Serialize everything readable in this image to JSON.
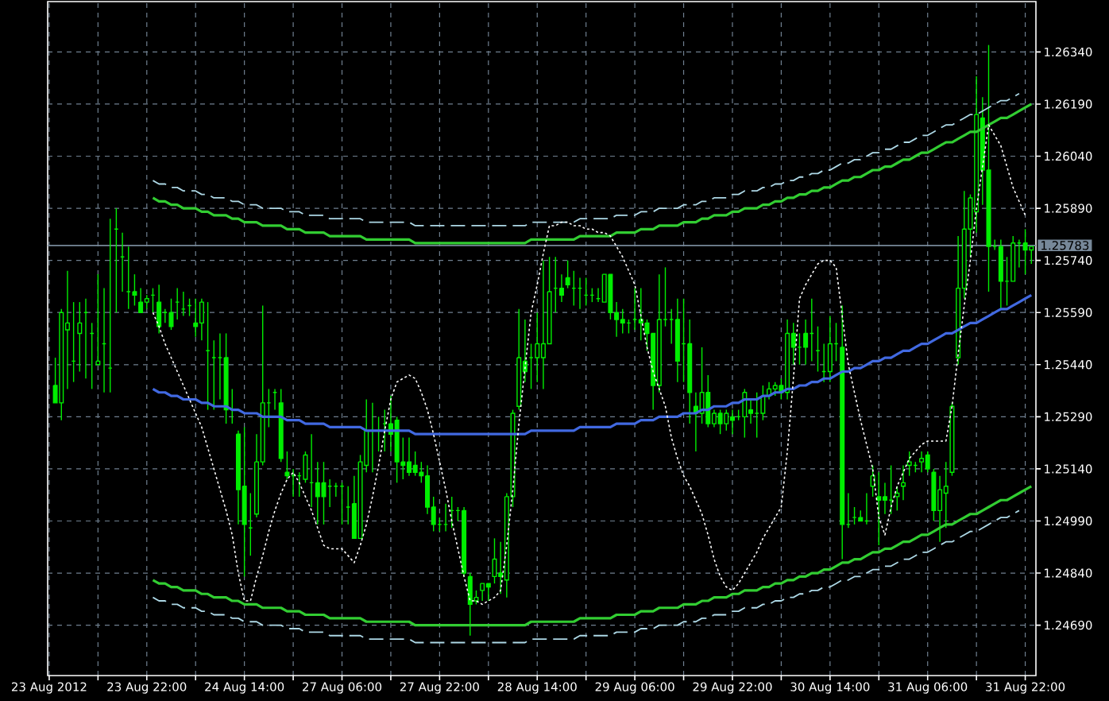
{
  "chart_data": {
    "type": "candlestick",
    "color": "#00ee00",
    "grid": true,
    "ylim": [
      1.24545,
      1.26485
    ],
    "categories": [
      "23 Aug 2012",
      null,
      null,
      null,
      null,
      null,
      null,
      null,
      null,
      null,
      null,
      null,
      null,
      null,
      null,
      null,
      "23 Aug 22:00",
      null,
      null,
      null,
      null,
      null,
      null,
      null,
      null,
      null,
      null,
      null,
      null,
      null,
      null,
      null,
      "24 Aug 14:00",
      null,
      null,
      null,
      null,
      null,
      null,
      null,
      null,
      null,
      null,
      null,
      null,
      null,
      null,
      null,
      "27 Aug 06:00",
      null,
      null,
      null,
      null,
      null,
      null,
      null,
      null,
      null,
      null,
      null,
      null,
      null,
      null,
      null,
      "27 Aug 22:00",
      null,
      null,
      null,
      null,
      null,
      null,
      null,
      null,
      null,
      null,
      null,
      null,
      null,
      null,
      null,
      "28 Aug 14:00",
      null,
      null,
      null,
      null,
      null,
      null,
      null,
      null,
      null,
      null,
      null,
      null,
      null,
      null,
      null,
      "29 Aug 06:00",
      null,
      null,
      null,
      null,
      null,
      null,
      null,
      null,
      null,
      null,
      null,
      null,
      null,
      null,
      null,
      "29 Aug 22:00",
      null,
      null,
      null,
      null,
      null,
      null,
      null,
      null,
      null,
      null,
      null,
      null,
      null,
      null,
      null,
      "30 Aug 14:00",
      null,
      null,
      null,
      null,
      null,
      null,
      null,
      null,
      null,
      null,
      null,
      null,
      null,
      null,
      null,
      "31 Aug 06:00",
      null,
      null,
      null,
      null,
      null,
      null,
      null,
      null,
      null,
      null,
      null,
      null,
      null,
      null,
      null,
      "31 Aug 22:00",
      null
    ],
    "yticks": [
      {
        "value": 1.2469,
        "label": "1.24690"
      },
      {
        "value": 1.2484,
        "label": "1.24840"
      },
      {
        "value": 1.2499,
        "label": "1.24990"
      },
      {
        "value": 1.2514,
        "label": "1.25140"
      },
      {
        "value": 1.2529,
        "label": "1.25290"
      },
      {
        "value": 1.2544,
        "label": "1.25440"
      },
      {
        "value": 1.2559,
        "label": "1.25590"
      },
      {
        "value": 1.2574,
        "label": "1.25740"
      },
      {
        "value": 1.2589,
        "label": "1.25890"
      },
      {
        "value": 1.2604,
        "label": "1.26040"
      },
      {
        "value": 1.2619,
        "label": "1.26190"
      },
      {
        "value": 1.2634,
        "label": "1.26340"
      }
    ],
    "ref_lines": [
      {
        "axis": "y",
        "value": 1.25783,
        "label": "1.25783",
        "color": "#778899"
      }
    ],
    "ohlc": [
      null,
      [
        1.2538,
        1.2546,
        1.2533,
        1.2533
      ],
      [
        1.2533,
        1.256,
        1.2528,
        1.2559
      ],
      [
        1.2554,
        1.2571,
        1.2537,
        1.2556
      ],
      [
        1.2545,
        1.2562,
        1.2539,
        1.2545
      ],
      [
        1.2553,
        1.2562,
        1.2542,
        1.2556
      ],
      [
        1.2559,
        1.2563,
        1.254,
        1.2559
      ],
      [
        1.2553,
        1.2556,
        1.2537,
        1.2553
      ],
      [
        1.2544,
        1.257,
        1.2544,
        1.2545
      ],
      [
        1.255,
        1.2566,
        1.2536,
        1.255
      ],
      [
        1.2543,
        1.2586,
        1.2536,
        1.2543
      ],
      [
        1.2583,
        1.2589,
        1.2559,
        1.2583
      ],
      [
        1.2575,
        1.2582,
        1.2565,
        1.2575
      ],
      [
        1.2565,
        1.2578,
        1.256,
        1.2565
      ],
      [
        1.2565,
        1.257,
        1.2561,
        1.2564
      ],
      [
        1.2562,
        1.2566,
        1.2559,
        1.2559
      ],
      [
        1.2562,
        1.2564,
        1.256,
        1.2563
      ],
      [
        1.2564,
        1.2566,
        1.2559,
        1.2564
      ],
      [
        1.2562,
        1.2567,
        1.2553,
        1.2555
      ],
      [
        1.2559,
        1.256,
        1.2556,
        1.2559
      ],
      [
        1.2559,
        1.2563,
        1.2554,
        1.2555
      ],
      [
        1.2562,
        1.2566,
        1.2557,
        1.2562
      ],
      [
        1.256,
        1.2565,
        1.2558,
        1.256
      ],
      [
        1.2561,
        1.2563,
        1.2558,
        1.2561
      ],
      [
        1.2556,
        1.2563,
        1.2552,
        1.2555
      ],
      [
        1.2556,
        1.2563,
        1.2551,
        1.2562
      ],
      [
        1.2548,
        1.2562,
        1.2531,
        1.2548
      ],
      [
        1.2546,
        1.2551,
        1.2531,
        1.2546
      ],
      [
        1.2546,
        1.2553,
        1.2534,
        1.2546
      ],
      [
        1.2546,
        1.2553,
        1.2527,
        1.2531
      ],
      [
        1.2531,
        1.2537,
        1.2527,
        1.2531
      ],
      [
        1.2524,
        1.2525,
        1.2498,
        1.2508
      ],
      [
        1.2509,
        1.2526,
        1.2483,
        1.2498
      ],
      [
        1.2497,
        1.2507,
        1.2489,
        1.2497
      ],
      [
        1.2501,
        1.2524,
        1.25,
        1.2516
      ],
      [
        1.2516,
        1.2561,
        1.2515,
        1.2533
      ],
      [
        1.2533,
        1.2537,
        1.2526,
        1.2533
      ],
      [
        1.2536,
        1.2537,
        1.2531,
        1.2536
      ],
      [
        1.2533,
        1.2537,
        1.2516,
        1.2517
      ],
      [
        1.2513,
        1.2519,
        1.2511,
        1.2512
      ],
      [
        1.2512,
        1.2514,
        1.2506,
        1.2512
      ],
      [
        1.2512,
        1.2513,
        1.2506,
        1.2512
      ],
      [
        1.2511,
        1.2519,
        1.251,
        1.2518
      ],
      [
        1.251,
        1.2524,
        1.2503,
        1.251
      ],
      [
        1.251,
        1.2516,
        1.2498,
        1.2506
      ],
      [
        1.251,
        1.2516,
        1.2498,
        1.2506
      ],
      [
        1.2509,
        1.2511,
        1.2503,
        1.2509
      ],
      [
        1.2509,
        1.251,
        1.2506,
        1.2509
      ],
      [
        1.2509,
        1.251,
        1.2498,
        1.2509
      ],
      [
        1.2503,
        1.2509,
        1.2498,
        1.2503
      ],
      [
        1.2504,
        1.2512,
        1.2494,
        1.2494
      ],
      [
        1.2494,
        1.2518,
        1.2494,
        1.2516
      ],
      [
        1.2515,
        1.2534,
        1.2513,
        1.2525
      ],
      [
        1.2525,
        1.2533,
        1.2513,
        1.2525
      ],
      [
        1.2525,
        1.2529,
        1.2519,
        1.2525
      ],
      [
        1.2527,
        1.2531,
        1.2519,
        1.2527
      ],
      [
        1.2527,
        1.2535,
        1.2519,
        1.2524
      ],
      [
        1.2528,
        1.2529,
        1.251,
        1.2516
      ],
      [
        1.2516,
        1.2523,
        1.2511,
        1.2515
      ],
      [
        1.2516,
        1.2523,
        1.2512,
        1.2513
      ],
      [
        1.2515,
        1.2519,
        1.2512,
        1.2513
      ],
      [
        1.2513,
        1.2516,
        1.251,
        1.2512
      ],
      [
        1.2512,
        1.2515,
        1.2501,
        1.2503
      ],
      [
        1.2503,
        1.2506,
        1.2496,
        1.2498
      ],
      [
        1.2498,
        1.25,
        1.2496,
        1.2498
      ],
      [
        1.2498,
        1.2504,
        1.2496,
        1.2498
      ],
      [
        1.2502,
        1.2506,
        1.2497,
        1.2502
      ],
      [
        1.2502,
        1.2503,
        1.2499,
        1.2502
      ],
      [
        1.2502,
        1.2503,
        1.2483,
        1.2484
      ],
      [
        1.2483,
        1.2484,
        1.2466,
        1.2475
      ],
      [
        1.2476,
        1.2479,
        1.2475,
        1.2477
      ],
      [
        1.2479,
        1.2481,
        1.2476,
        1.2481
      ],
      [
        1.2481,
        1.2481,
        1.2476,
        1.248
      ],
      [
        1.2483,
        1.2494,
        1.2481,
        1.2488
      ],
      [
        1.2484,
        1.2493,
        1.2478,
        1.2483
      ],
      [
        1.2482,
        1.2507,
        1.2477,
        1.2506
      ],
      [
        1.2506,
        1.2531,
        1.2503,
        1.253
      ],
      [
        1.2532,
        1.256,
        1.2531,
        1.2546
      ],
      [
        1.2545,
        1.2557,
        1.2539,
        1.2542
      ],
      [
        1.2546,
        1.255,
        1.2537,
        1.2546
      ],
      [
        1.2546,
        1.2559,
        1.2539,
        1.255
      ],
      [
        1.2546,
        1.2574,
        1.2537,
        1.255
      ],
      [
        1.255,
        1.2575,
        1.255,
        1.2565
      ],
      [
        1.2566,
        1.2575,
        1.2559,
        1.2566
      ],
      [
        1.2566,
        1.257,
        1.2562,
        1.2564
      ],
      [
        1.2569,
        1.2574,
        1.2566,
        1.2567
      ],
      [
        1.2566,
        1.2571,
        1.2561,
        1.2566
      ],
      [
        1.2566,
        1.2569,
        1.256,
        1.2566
      ],
      [
        1.2564,
        1.2569,
        1.2561,
        1.2564
      ],
      [
        1.2564,
        1.2566,
        1.2562,
        1.2564
      ],
      [
        1.2563,
        1.2566,
        1.2562,
        1.2563
      ],
      [
        1.2562,
        1.257,
        1.2562,
        1.257
      ],
      [
        1.257,
        1.257,
        1.2557,
        1.2559
      ],
      [
        1.2559,
        1.2562,
        1.2552,
        1.2557
      ],
      [
        1.2557,
        1.256,
        1.2553,
        1.2556
      ],
      [
        1.2556,
        1.2557,
        1.2553,
        1.2556
      ],
      [
        1.2557,
        1.2566,
        1.2554,
        1.2557
      ],
      [
        1.2557,
        1.2566,
        1.2551,
        1.2556
      ],
      [
        1.2556,
        1.2557,
        1.2548,
        1.2553
      ],
      [
        1.2553,
        1.2553,
        1.2531,
        1.2538
      ],
      [
        1.2538,
        1.257,
        1.2536,
        1.2557
      ],
      [
        1.2557,
        1.2572,
        1.2555,
        1.2557
      ],
      [
        1.2557,
        1.256,
        1.255,
        1.2557
      ],
      [
        1.2557,
        1.2563,
        1.2539,
        1.2545
      ],
      [
        1.255,
        1.2563,
        1.2539,
        1.255
      ],
      [
        1.255,
        1.2557,
        1.2527,
        1.2536
      ],
      [
        1.2532,
        1.2536,
        1.2519,
        1.253
      ],
      [
        1.253,
        1.2549,
        1.2527,
        1.2536
      ],
      [
        1.2536,
        1.2541,
        1.2526,
        1.2527
      ],
      [
        1.2527,
        1.2531,
        1.2526,
        1.253
      ],
      [
        1.253,
        1.2531,
        1.2524,
        1.2527
      ],
      [
        1.2527,
        1.2531,
        1.2525,
        1.253
      ],
      [
        1.2529,
        1.2531,
        1.2524,
        1.2528
      ],
      [
        1.2529,
        1.2531,
        1.2528,
        1.2529
      ],
      [
        1.2529,
        1.2537,
        1.2523,
        1.2536
      ],
      [
        1.2531,
        1.2534,
        1.2527,
        1.253
      ],
      [
        1.253,
        1.2536,
        1.2523,
        1.253
      ],
      [
        1.253,
        1.2538,
        1.2528,
        1.2535
      ],
      [
        1.2535,
        1.2539,
        1.2534,
        1.2537
      ],
      [
        1.2537,
        1.2539,
        1.2535,
        1.2538
      ],
      [
        1.2538,
        1.254,
        1.2534,
        1.2536
      ],
      [
        1.2536,
        1.2557,
        1.2534,
        1.2553
      ],
      [
        1.2553,
        1.2556,
        1.2544,
        1.2549
      ],
      [
        1.2549,
        1.2553,
        1.2544,
        1.2549
      ],
      [
        1.2553,
        1.2557,
        1.2544,
        1.2549
      ],
      [
        1.2553,
        1.2563,
        1.2545,
        1.2553
      ],
      [
        1.2548,
        1.2555,
        1.2542,
        1.2548
      ],
      [
        1.2542,
        1.255,
        1.2539,
        1.2542
      ],
      [
        1.2542,
        1.2558,
        1.2539,
        1.255
      ],
      [
        1.255,
        1.2556,
        1.2545,
        1.255
      ],
      [
        1.2549,
        1.2561,
        1.2488,
        1.2498
      ],
      [
        1.2498,
        1.2507,
        1.2497,
        1.2498
      ],
      [
        1.25,
        1.2503,
        1.2498,
        1.25
      ],
      [
        1.25,
        1.2502,
        1.2499,
        1.2499
      ],
      [
        1.2499,
        1.2507,
        1.2498,
        1.2499
      ],
      [
        1.2509,
        1.2515,
        1.2506,
        1.2512
      ],
      [
        1.2506,
        1.2513,
        1.2492,
        1.2505
      ],
      [
        1.2506,
        1.251,
        1.2501,
        1.2505
      ],
      [
        1.2505,
        1.2515,
        1.2501,
        1.2505
      ],
      [
        1.2506,
        1.2509,
        1.2502,
        1.2507
      ],
      [
        1.2509,
        1.2515,
        1.2505,
        1.251
      ],
      [
        1.2515,
        1.2519,
        1.2512,
        1.2516
      ],
      [
        1.2515,
        1.2516,
        1.2513,
        1.2515
      ],
      [
        1.2516,
        1.2519,
        1.2513,
        1.2517
      ],
      [
        1.2518,
        1.2519,
        1.2513,
        1.2514
      ],
      [
        1.2513,
        1.2514,
        1.2499,
        1.2502
      ],
      [
        1.2502,
        1.2512,
        1.2493,
        1.2508
      ],
      [
        1.2507,
        1.2516,
        1.2497,
        1.2509
      ],
      [
        1.2513,
        1.2533,
        1.2512,
        1.2532
      ],
      [
        1.2546,
        1.2581,
        1.2544,
        1.2566
      ],
      [
        1.2566,
        1.2594,
        1.2563,
        1.2583
      ],
      [
        1.2583,
        1.2593,
        1.2575,
        1.2592
      ],
      [
        1.2588,
        1.2627,
        1.2582,
        1.2616
      ],
      [
        1.2615,
        1.2621,
        1.259,
        1.26
      ],
      [
        1.26,
        1.2636,
        1.2565,
        1.2578
      ],
      [
        1.2578,
        1.258,
        1.2577,
        1.2578
      ],
      [
        1.2578,
        1.258,
        1.256,
        1.2568
      ],
      [
        1.2568,
        1.2575,
        1.2561,
        1.2568
      ],
      [
        1.2568,
        1.2581,
        1.2568,
        1.2579
      ],
      [
        1.2579,
        1.258,
        1.2572,
        1.2579
      ],
      [
        1.2579,
        1.2583,
        1.257,
        1.2577
      ],
      [
        1.2577,
        1.2578,
        1.2573,
        1.2578
      ]
    ],
    "series": [
      {
        "type": "line",
        "color": "#add8e6",
        "line_style": "dashed",
        "values": [
          null,
          null,
          null,
          null,
          null,
          null,
          null,
          null,
          null,
          null,
          null,
          null,
          null,
          null,
          null,
          null,
          null,
          1.2597,
          1.2596,
          1.2596,
          1.2595,
          1.2595,
          1.2594,
          1.2594,
          1.2594,
          1.2593,
          1.2593,
          1.2592,
          1.2592,
          1.2592,
          1.2591,
          1.2591,
          1.259,
          1.259,
          1.259,
          1.2589,
          1.2589,
          1.2589,
          1.2589,
          1.2588,
          1.2588,
          1.2588,
          1.2587,
          1.2587,
          1.2587,
          1.2587,
          1.2586,
          1.2586,
          1.2586,
          1.2586,
          1.2586,
          1.2586,
          1.2585,
          1.2585,
          1.2585,
          1.2585,
          1.2585,
          1.2585,
          1.2585,
          1.2585,
          1.2584,
          1.2584,
          1.2584,
          1.2584,
          1.2584,
          1.2584,
          1.2584,
          1.2584,
          1.2584,
          1.2584,
          1.2584,
          1.2584,
          1.2584,
          1.2584,
          1.2584,
          1.2584,
          1.2584,
          1.2584,
          1.2584,
          1.2585,
          1.2585,
          1.2585,
          1.2585,
          1.2585,
          1.2585,
          1.2585,
          1.2585,
          1.2586,
          1.2586,
          1.2586,
          1.2586,
          1.2586,
          1.2586,
          1.2587,
          1.2587,
          1.2587,
          1.2587,
          1.2588,
          1.2588,
          1.2588,
          1.2589,
          1.2589,
          1.2589,
          1.2589,
          1.259,
          1.259,
          1.259,
          1.2591,
          1.2591,
          1.2592,
          1.2592,
          1.2592,
          1.2593,
          1.2593,
          1.2594,
          1.2594,
          1.2594,
          1.2595,
          1.2595,
          1.2596,
          1.2596,
          1.2597,
          1.2597,
          1.2598,
          1.2598,
          1.2599,
          1.2599,
          1.26,
          1.26,
          1.2601,
          1.2602,
          1.2602,
          1.2603,
          1.2603,
          1.2604,
          1.2605,
          1.2605,
          1.2606,
          1.2606,
          1.2607,
          1.2608,
          1.2608,
          1.2609,
          1.261,
          1.261,
          1.2611,
          1.2612,
          1.2613,
          1.2613,
          1.2614,
          1.2615,
          1.2616,
          1.2616,
          1.2617,
          1.2618,
          1.2619,
          1.262,
          1.262,
          1.2621,
          1.2622,
          null,
          null
        ]
      },
      {
        "type": "line",
        "color": "#32cd32",
        "line_style": "solid",
        "values": [
          null,
          null,
          null,
          null,
          null,
          null,
          null,
          null,
          null,
          null,
          null,
          null,
          null,
          null,
          null,
          null,
          null,
          1.2592,
          1.2591,
          1.2591,
          1.259,
          1.259,
          1.2589,
          1.2589,
          1.2589,
          1.2588,
          1.2588,
          1.2587,
          1.2587,
          1.2587,
          1.2586,
          1.2586,
          1.2585,
          1.2585,
          1.2585,
          1.2584,
          1.2584,
          1.2584,
          1.2584,
          1.2583,
          1.2583,
          1.2583,
          1.2582,
          1.2582,
          1.2582,
          1.2582,
          1.2581,
          1.2581,
          1.2581,
          1.2581,
          1.2581,
          1.2581,
          1.258,
          1.258,
          1.258,
          1.258,
          1.258,
          1.258,
          1.258,
          1.258,
          1.2579,
          1.2579,
          1.2579,
          1.2579,
          1.2579,
          1.2579,
          1.2579,
          1.2579,
          1.2579,
          1.2579,
          1.2579,
          1.2579,
          1.2579,
          1.2579,
          1.2579,
          1.2579,
          1.2579,
          1.2579,
          1.2579,
          1.258,
          1.258,
          1.258,
          1.258,
          1.258,
          1.258,
          1.258,
          1.258,
          1.2581,
          1.2581,
          1.2581,
          1.2581,
          1.2581,
          1.2581,
          1.2582,
          1.2582,
          1.2582,
          1.2582,
          1.2583,
          1.2583,
          1.2583,
          1.2584,
          1.2584,
          1.2584,
          1.2584,
          1.2585,
          1.2585,
          1.2585,
          1.2586,
          1.2586,
          1.2587,
          1.2587,
          1.2587,
          1.2588,
          1.2588,
          1.2589,
          1.2589,
          1.2589,
          1.259,
          1.259,
          1.2591,
          1.2591,
          1.2592,
          1.2592,
          1.2593,
          1.2593,
          1.2594,
          1.2594,
          1.2595,
          1.2595,
          1.2596,
          1.2597,
          1.2597,
          1.2598,
          1.2598,
          1.2599,
          1.26,
          1.26,
          1.2601,
          1.2601,
          1.2602,
          1.2603,
          1.2603,
          1.2604,
          1.2605,
          1.2605,
          1.2606,
          1.2607,
          1.2608,
          1.2608,
          1.2609,
          1.261,
          1.2611,
          1.2611,
          1.2612,
          1.2613,
          1.2614,
          1.2615,
          1.2615,
          1.2616,
          1.2617,
          1.2618,
          1.2619
        ]
      },
      {
        "type": "line",
        "color": "#4169e1",
        "line_style": "solid",
        "values": [
          null,
          null,
          null,
          null,
          null,
          null,
          null,
          null,
          null,
          null,
          null,
          null,
          null,
          null,
          null,
          null,
          null,
          1.2537,
          1.2536,
          1.2536,
          1.2535,
          1.2535,
          1.2534,
          1.2534,
          1.2534,
          1.2533,
          1.2533,
          1.2532,
          1.2532,
          1.2532,
          1.2531,
          1.2531,
          1.253,
          1.253,
          1.253,
          1.2529,
          1.2529,
          1.2529,
          1.2529,
          1.2528,
          1.2528,
          1.2528,
          1.2527,
          1.2527,
          1.2527,
          1.2527,
          1.2526,
          1.2526,
          1.2526,
          1.2526,
          1.2526,
          1.2526,
          1.2525,
          1.2525,
          1.2525,
          1.2525,
          1.2525,
          1.2525,
          1.2525,
          1.2525,
          1.2524,
          1.2524,
          1.2524,
          1.2524,
          1.2524,
          1.2524,
          1.2524,
          1.2524,
          1.2524,
          1.2524,
          1.2524,
          1.2524,
          1.2524,
          1.2524,
          1.2524,
          1.2524,
          1.2524,
          1.2524,
          1.2524,
          1.2525,
          1.2525,
          1.2525,
          1.2525,
          1.2525,
          1.2525,
          1.2525,
          1.2525,
          1.2526,
          1.2526,
          1.2526,
          1.2526,
          1.2526,
          1.2526,
          1.2527,
          1.2527,
          1.2527,
          1.2527,
          1.2528,
          1.2528,
          1.2528,
          1.2529,
          1.2529,
          1.2529,
          1.2529,
          1.253,
          1.253,
          1.253,
          1.2531,
          1.2531,
          1.2532,
          1.2532,
          1.2532,
          1.2533,
          1.2533,
          1.2534,
          1.2534,
          1.2534,
          1.2535,
          1.2535,
          1.2536,
          1.2536,
          1.2537,
          1.2537,
          1.2538,
          1.2538,
          1.2539,
          1.2539,
          1.254,
          1.254,
          1.2541,
          1.2542,
          1.2542,
          1.2543,
          1.2543,
          1.2544,
          1.2545,
          1.2545,
          1.2546,
          1.2546,
          1.2547,
          1.2548,
          1.2548,
          1.2549,
          1.255,
          1.255,
          1.2551,
          1.2552,
          1.2553,
          1.2553,
          1.2554,
          1.2555,
          1.2556,
          1.2556,
          1.2557,
          1.2558,
          1.2559,
          1.256,
          1.256,
          1.2561,
          1.2562,
          1.2563,
          1.2564
        ]
      },
      {
        "type": "line",
        "color": "#32cd32",
        "line_style": "solid",
        "values": [
          null,
          null,
          null,
          null,
          null,
          null,
          null,
          null,
          null,
          null,
          null,
          null,
          null,
          null,
          null,
          null,
          null,
          1.2482,
          1.2481,
          1.2481,
          1.248,
          1.248,
          1.2479,
          1.2479,
          1.2479,
          1.2478,
          1.2478,
          1.2477,
          1.2477,
          1.2477,
          1.2476,
          1.2476,
          1.2475,
          1.2475,
          1.2475,
          1.2474,
          1.2474,
          1.2474,
          1.2474,
          1.2473,
          1.2473,
          1.2473,
          1.2472,
          1.2472,
          1.2472,
          1.2472,
          1.2471,
          1.2471,
          1.2471,
          1.2471,
          1.2471,
          1.2471,
          1.247,
          1.247,
          1.247,
          1.247,
          1.247,
          1.247,
          1.247,
          1.247,
          1.2469,
          1.2469,
          1.2469,
          1.2469,
          1.2469,
          1.2469,
          1.2469,
          1.2469,
          1.2469,
          1.2469,
          1.2469,
          1.2469,
          1.2469,
          1.2469,
          1.2469,
          1.2469,
          1.2469,
          1.2469,
          1.2469,
          1.247,
          1.247,
          1.247,
          1.247,
          1.247,
          1.247,
          1.247,
          1.247,
          1.2471,
          1.2471,
          1.2471,
          1.2471,
          1.2471,
          1.2471,
          1.2472,
          1.2472,
          1.2472,
          1.2472,
          1.2473,
          1.2473,
          1.2473,
          1.2474,
          1.2474,
          1.2474,
          1.2474,
          1.2475,
          1.2475,
          1.2475,
          1.2476,
          1.2476,
          1.2477,
          1.2477,
          1.2477,
          1.2478,
          1.2478,
          1.2479,
          1.2479,
          1.2479,
          1.248,
          1.248,
          1.2481,
          1.2481,
          1.2482,
          1.2482,
          1.2483,
          1.2483,
          1.2484,
          1.2484,
          1.2485,
          1.2485,
          1.2486,
          1.2487,
          1.2487,
          1.2488,
          1.2488,
          1.2489,
          1.249,
          1.249,
          1.2491,
          1.2491,
          1.2492,
          1.2493,
          1.2493,
          1.2494,
          1.2495,
          1.2495,
          1.2496,
          1.2497,
          1.2498,
          1.2498,
          1.2499,
          1.25,
          1.2501,
          1.2501,
          1.2502,
          1.2503,
          1.2504,
          1.2505,
          1.2505,
          1.2506,
          1.2507,
          1.2508,
          1.2509
        ]
      },
      {
        "type": "line",
        "color": "#add8e6",
        "line_style": "dashed",
        "values": [
          null,
          null,
          null,
          null,
          null,
          null,
          null,
          null,
          null,
          null,
          null,
          null,
          null,
          null,
          null,
          null,
          null,
          1.2477,
          1.2476,
          1.2476,
          1.2475,
          1.2475,
          1.2474,
          1.2474,
          1.2474,
          1.2473,
          1.2473,
          1.2472,
          1.2472,
          1.2472,
          1.2471,
          1.2471,
          1.247,
          1.247,
          1.247,
          1.2469,
          1.2469,
          1.2469,
          1.2469,
          1.2468,
          1.2468,
          1.2468,
          1.2467,
          1.2467,
          1.2467,
          1.2467,
          1.2466,
          1.2466,
          1.2466,
          1.2466,
          1.2466,
          1.2466,
          1.2465,
          1.2465,
          1.2465,
          1.2465,
          1.2465,
          1.2465,
          1.2465,
          1.2465,
          1.2464,
          1.2464,
          1.2464,
          1.2464,
          1.2464,
          1.2464,
          1.2464,
          1.2464,
          1.2464,
          1.2464,
          1.2464,
          1.2464,
          1.2464,
          1.2464,
          1.2464,
          1.2464,
          1.2464,
          1.2464,
          1.2464,
          1.2465,
          1.2465,
          1.2465,
          1.2465,
          1.2465,
          1.2465,
          1.2465,
          1.2465,
          1.2466,
          1.2466,
          1.2466,
          1.2466,
          1.2466,
          1.2466,
          1.2467,
          1.2467,
          1.2467,
          1.2467,
          1.2468,
          1.2468,
          1.2468,
          1.2469,
          1.2469,
          1.2469,
          1.2469,
          1.247,
          1.247,
          1.247,
          1.2471,
          1.2471,
          1.2472,
          1.2472,
          1.2472,
          1.2473,
          1.2473,
          1.2474,
          1.2474,
          1.2474,
          1.2475,
          1.2475,
          1.2476,
          1.2476,
          1.2477,
          1.2477,
          1.2478,
          1.2478,
          1.2479,
          1.2479,
          1.248,
          1.248,
          1.2481,
          1.2482,
          1.2482,
          1.2483,
          1.2483,
          1.2484,
          1.2485,
          1.2485,
          1.2486,
          1.2486,
          1.2487,
          1.2488,
          1.2488,
          1.2489,
          1.249,
          1.249,
          1.2491,
          1.2492,
          1.2493,
          1.2493,
          1.2494,
          1.2495,
          1.2496,
          1.2496,
          1.2497,
          1.2498,
          1.2499,
          1.25,
          1.25,
          1.2501,
          1.2502,
          null,
          null
        ]
      },
      {
        "type": "line",
        "color": "#ffffff",
        "line_style": "dotted",
        "values": [
          null,
          null,
          null,
          null,
          null,
          null,
          null,
          null,
          null,
          null,
          null,
          null,
          null,
          null,
          null,
          null,
          null,
          1.2559,
          1.2555,
          1.255,
          1.2546,
          1.2542,
          1.2538,
          1.2534,
          1.253,
          1.2526,
          1.252,
          1.2514,
          1.2508,
          1.2502,
          1.2495,
          1.2484,
          1.2476,
          1.2476,
          1.2483,
          1.2489,
          1.2496,
          1.2502,
          1.2507,
          1.2511,
          1.2513,
          1.251,
          1.2506,
          1.2502,
          1.2497,
          1.2492,
          1.2491,
          1.2491,
          1.2491,
          1.2489,
          1.2487,
          1.2492,
          1.2498,
          1.2506,
          1.2515,
          1.2525,
          1.2534,
          1.2539,
          1.254,
          1.2541,
          1.254,
          1.2536,
          1.2531,
          1.2524,
          1.2516,
          1.2508,
          1.2499,
          1.2491,
          1.2483,
          1.2476,
          1.2476,
          1.2475,
          1.2476,
          1.2477,
          1.2479,
          1.2492,
          1.2508,
          1.2527,
          1.2543,
          1.2559,
          1.2567,
          1.2576,
          1.2584,
          1.2584,
          1.2585,
          1.2585,
          1.2584,
          1.2584,
          1.2583,
          1.2583,
          1.2582,
          1.2582,
          1.2581,
          1.2578,
          1.2575,
          1.2571,
          1.2567,
          1.2558,
          1.2549,
          1.2542,
          1.2537,
          1.2532,
          1.2523,
          1.2517,
          1.2512,
          1.2509,
          1.2505,
          1.2501,
          1.2495,
          1.2488,
          1.2483,
          1.248,
          1.2479,
          1.2481,
          1.2484,
          1.2487,
          1.249,
          1.2494,
          1.2497,
          1.25,
          1.2503,
          1.2519,
          1.254,
          1.2563,
          1.2567,
          1.257,
          1.2573,
          1.2574,
          1.2574,
          1.2572,
          1.2558,
          1.2544,
          1.2536,
          1.2528,
          1.2521,
          1.2514,
          1.25,
          1.2495,
          1.2503,
          1.2509,
          1.2513,
          1.2517,
          1.2519,
          1.2521,
          1.2522,
          1.2522,
          1.2522,
          1.2522,
          1.2532,
          1.2547,
          1.2561,
          1.2574,
          1.2589,
          1.2601,
          1.2613,
          1.261,
          1.2607,
          1.2601,
          1.2595,
          1.2591,
          1.2587,
          null
        ]
      }
    ]
  }
}
